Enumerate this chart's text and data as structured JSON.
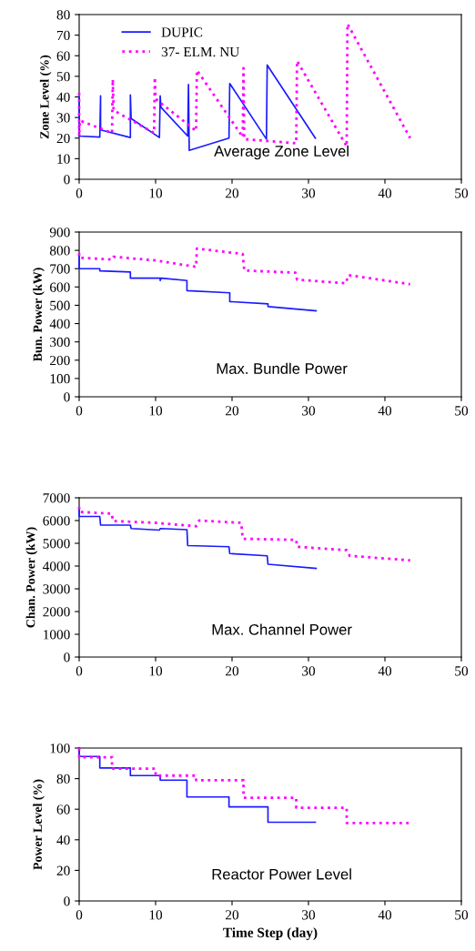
{
  "chart_data": [
    {
      "type": "line",
      "ylabel": "Zone Level (%)",
      "annotations": [
        "Average Zone Level"
      ],
      "xlim": [
        0,
        50
      ],
      "xticks": [
        0,
        10,
        20,
        30,
        40,
        50
      ],
      "ylim": [
        0,
        80
      ],
      "yticks": [
        0,
        10,
        20,
        30,
        40,
        50,
        60,
        70,
        80
      ],
      "grid": false,
      "legend": "top left",
      "series": [
        {
          "name": "DUPIC",
          "color": "#1a1aff",
          "line_style": "solid",
          "x": [
            0,
            0,
            2.7,
            2.8,
            2.8,
            6.7,
            6.7,
            6.8,
            10.5,
            10.6,
            10.7,
            14.2,
            14.3,
            14.4,
            19.6,
            19.7,
            24.5,
            24.6,
            30.9
          ],
          "values": [
            40,
            21,
            20.5,
            40.5,
            24,
            20.3,
            41,
            29.5,
            20.3,
            40.5,
            35,
            21,
            46,
            14,
            20,
            46.5,
            19.5,
            55.5,
            20
          ]
        },
        {
          "name": "37- ELM. NU",
          "color": "#ff00ff",
          "line_style": "dotted",
          "x": [
            0,
            0,
            0.1,
            4.3,
            4.4,
            4.5,
            9.8,
            9.9,
            10.0,
            15.3,
            15.4,
            21.4,
            21.5,
            21.6,
            28.4,
            28.5,
            35.0,
            35.1,
            43.3
          ],
          "values": [
            42,
            21,
            28.5,
            22.5,
            48.5,
            33.5,
            22.5,
            49.5,
            39,
            23.5,
            53,
            20.5,
            54,
            19.5,
            17.5,
            57.5,
            16,
            75.5,
            20
          ]
        }
      ]
    },
    {
      "type": "line",
      "ylabel": "Bun. Power (kW)",
      "annotations": [
        "Max. Bundle Power"
      ],
      "xlim": [
        0,
        50
      ],
      "xticks": [
        0,
        10,
        20,
        30,
        40,
        50
      ],
      "ylim": [
        0,
        900
      ],
      "yticks": [
        0,
        100,
        200,
        300,
        400,
        500,
        600,
        700,
        800,
        900
      ],
      "grid": false,
      "series": [
        {
          "color": "#1a1aff",
          "line_style": "solid",
          "x": [
            0,
            0,
            2.7,
            2.7,
            6.7,
            6.7,
            10.6,
            10.6,
            10.7,
            14.1,
            14.1,
            19.7,
            19.7,
            24.7,
            24.7,
            31.0
          ],
          "values": [
            770,
            700,
            700,
            688,
            682,
            648,
            648,
            635,
            648,
            635,
            580,
            568,
            520,
            508,
            493,
            470
          ]
        },
        {
          "color": "#ff00ff",
          "line_style": "dotted",
          "x": [
            0,
            0,
            4.3,
            4.5,
            10.0,
            15.3,
            15.4,
            21.4,
            21.6,
            28.3,
            28.5,
            34.9,
            35.2,
            43.3
          ],
          "values": [
            785,
            760,
            750,
            765,
            745,
            710,
            810,
            780,
            690,
            678,
            640,
            620,
            665,
            615
          ]
        }
      ]
    },
    {
      "type": "line",
      "ylabel": "Chan. Power (kW)",
      "annotations": [
        "Max. Channel Power"
      ],
      "xlim": [
        0,
        50
      ],
      "xticks": [
        0,
        10,
        20,
        30,
        40,
        50
      ],
      "ylim": [
        0,
        7000
      ],
      "yticks": [
        0,
        1000,
        2000,
        3000,
        4000,
        5000,
        6000,
        7000
      ],
      "grid": false,
      "series": [
        {
          "color": "#1a1aff",
          "line_style": "solid",
          "x": [
            0,
            0,
            2.7,
            2.8,
            6.7,
            6.8,
            10.5,
            10.6,
            14.1,
            14.2,
            19.6,
            19.7,
            24.6,
            24.7,
            31.0
          ],
          "values": [
            6500,
            6180,
            6180,
            5800,
            5800,
            5650,
            5580,
            5650,
            5600,
            4900,
            4850,
            4550,
            4450,
            4080,
            3900
          ]
        },
        {
          "color": "#ff00ff",
          "line_style": "dotted",
          "x": [
            0,
            0,
            4.3,
            4.4,
            10.0,
            15.3,
            15.7,
            21.2,
            21.4,
            28.4,
            28.5,
            35.0,
            35.4,
            43.3
          ],
          "values": [
            6600,
            6380,
            6300,
            5980,
            5900,
            5750,
            6000,
            5900,
            5200,
            5150,
            4850,
            4700,
            4450,
            4250
          ]
        }
      ]
    },
    {
      "type": "line",
      "ylabel": "Power Level (%)",
      "xlabel": "Time Step (day)",
      "annotations": [
        "Reactor Power Level"
      ],
      "xlim": [
        0,
        50
      ],
      "xticks": [
        0,
        10,
        20,
        30,
        40,
        50
      ],
      "ylim": [
        0,
        100
      ],
      "yticks": [
        0,
        20,
        40,
        60,
        80,
        100
      ],
      "grid": false,
      "series": [
        {
          "color": "#1a1aff",
          "line_style": "solid",
          "x": [
            0,
            0,
            2.7,
            2.7,
            6.7,
            6.7,
            10.6,
            10.6,
            14.1,
            14.1,
            19.6,
            19.6,
            24.7,
            24.7,
            30.9
          ],
          "values": [
            100,
            94.5,
            94.5,
            87,
            87,
            82,
            82,
            79,
            79,
            68,
            68,
            61.5,
            61.5,
            51.5,
            51.5
          ]
        },
        {
          "color": "#ff00ff",
          "line_style": "dotted",
          "x": [
            0,
            0,
            4.3,
            4.3,
            10,
            10,
            15.3,
            15.3,
            21.5,
            21.5,
            28.4,
            28.4,
            35.0,
            35.0,
            43.3
          ],
          "values": [
            100,
            94,
            94,
            86.5,
            86.5,
            82,
            82,
            79,
            79,
            67.5,
            67.5,
            61,
            61,
            51,
            51
          ]
        }
      ]
    }
  ]
}
